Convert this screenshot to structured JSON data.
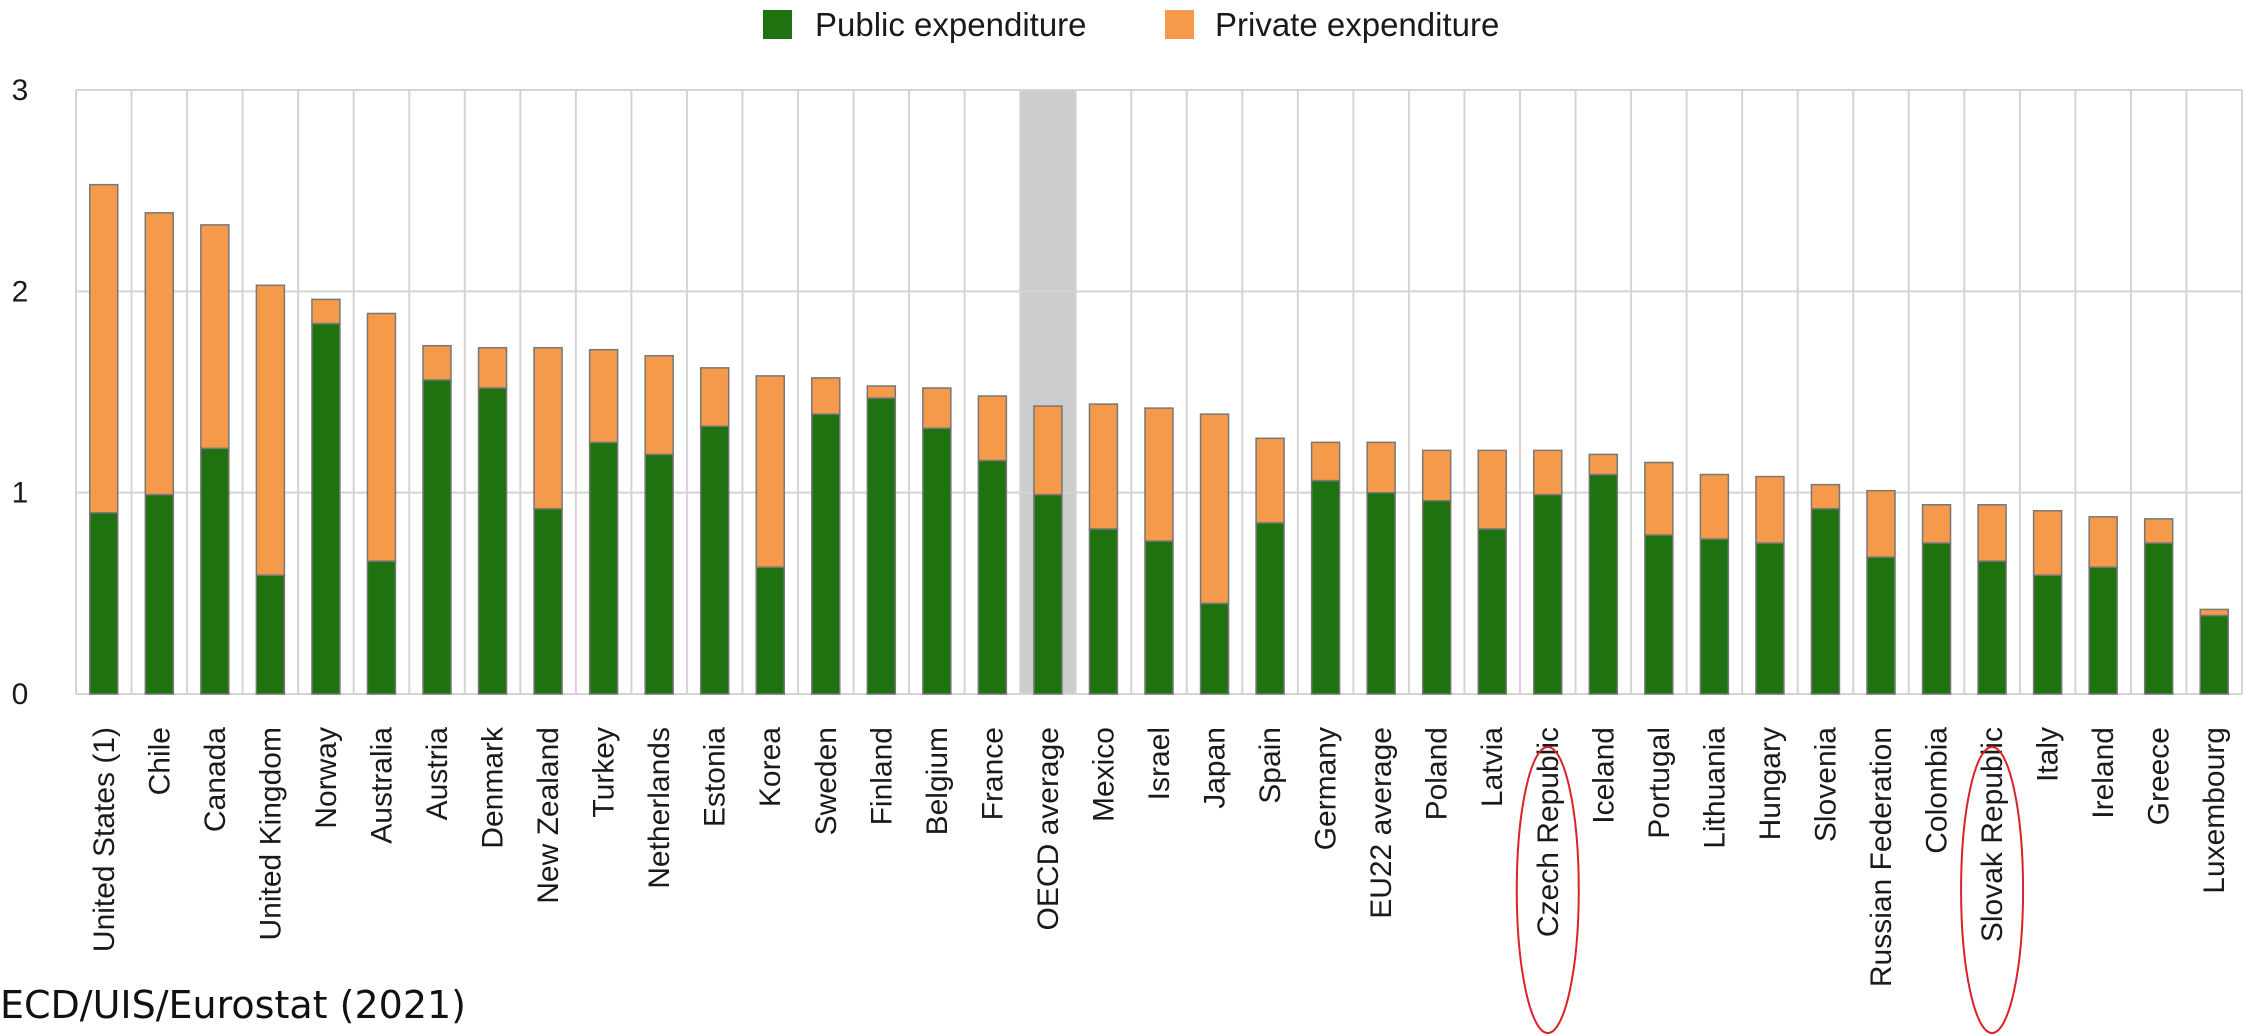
{
  "legend": {
    "public_label": "Public expenditure",
    "private_label": "Private expenditure"
  },
  "source_text": "ECD/UIS/Eurostat (2021)",
  "colors": {
    "public": "#1e720f",
    "private": "#f59a4b",
    "highlight_band": "#cccccc",
    "grid": "#d4d4d4",
    "bar_outline": "#777777",
    "circle": "#d8232a"
  },
  "chart_data": {
    "type": "bar",
    "stacked": true,
    "ylim": [
      0,
      3
    ],
    "yticks": [
      0,
      1,
      2,
      3
    ],
    "grid": true,
    "legend_position": "top-center",
    "highlighted_category": "OECD average",
    "circled_categories": [
      "Czech Republic",
      "Slovak Republic"
    ],
    "categories": [
      "United States (1)",
      "Chile",
      "Canada",
      "United Kingdom",
      "Norway",
      "Australia",
      "Austria",
      "Denmark",
      "New Zealand",
      "Turkey",
      "Netherlands",
      "Estonia",
      "Korea",
      "Sweden",
      "Finland",
      "Belgium",
      "France",
      "OECD average",
      "Mexico",
      "Israel",
      "Japan",
      "Spain",
      "Germany",
      "EU22 average",
      "Poland",
      "Latvia",
      "Czech Republic",
      "Iceland",
      "Portugal",
      "Lithuania",
      "Hungary",
      "Slovenia",
      "Russian Federation",
      "Colombia",
      "Slovak Republic",
      "Italy",
      "Ireland",
      "Greece",
      "Luxembourg"
    ],
    "series": [
      {
        "name": "Public expenditure",
        "values": [
          0.9,
          0.99,
          1.22,
          0.59,
          1.84,
          0.66,
          1.56,
          1.52,
          0.92,
          1.25,
          1.19,
          1.33,
          0.63,
          1.39,
          1.47,
          1.32,
          1.16,
          0.99,
          0.82,
          0.76,
          0.45,
          0.85,
          1.06,
          1.0,
          0.96,
          0.82,
          0.99,
          1.09,
          0.79,
          0.77,
          0.75,
          0.92,
          0.68,
          0.75,
          0.66,
          0.59,
          0.63,
          0.75,
          0.39
        ]
      },
      {
        "name": "Private expenditure",
        "values": [
          1.63,
          1.4,
          1.11,
          1.44,
          0.12,
          1.23,
          0.17,
          0.2,
          0.8,
          0.46,
          0.49,
          0.29,
          0.95,
          0.18,
          0.06,
          0.2,
          0.32,
          0.44,
          0.62,
          0.66,
          0.94,
          0.42,
          0.19,
          0.25,
          0.25,
          0.39,
          0.22,
          0.1,
          0.36,
          0.32,
          0.33,
          0.12,
          0.33,
          0.19,
          0.28,
          0.32,
          0.25,
          0.12,
          0.03
        ]
      }
    ]
  }
}
